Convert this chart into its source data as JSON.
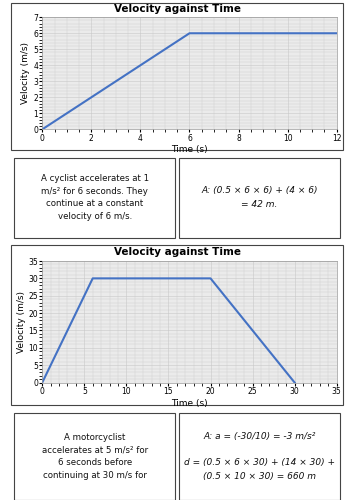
{
  "chart1": {
    "title": "Velocity against Time",
    "xlabel": "Time (s)",
    "ylabel": "Velocity (m/s)",
    "x": [
      0,
      6,
      10,
      12
    ],
    "y": [
      0,
      6,
      6,
      6
    ],
    "xlim": [
      0,
      12
    ],
    "ylim": [
      0,
      7
    ],
    "xticks": [
      0,
      2,
      4,
      6,
      8,
      10,
      12
    ],
    "yticks": [
      0,
      1,
      2,
      3,
      4,
      5,
      6,
      7
    ],
    "line_color": "#4472C4",
    "line_width": 1.5
  },
  "chart2": {
    "title": "Velocity against Time",
    "xlabel": "Time (s)",
    "ylabel": "Velocity (m/s)",
    "x": [
      0,
      6,
      20,
      30
    ],
    "y": [
      0,
      30,
      30,
      0
    ],
    "xlim": [
      0,
      35
    ],
    "ylim": [
      0,
      35
    ],
    "xticks": [
      0,
      5,
      10,
      15,
      20,
      25,
      30,
      35
    ],
    "yticks": [
      0,
      5,
      10,
      15,
      20,
      25,
      30,
      35
    ],
    "line_color": "#4472C4",
    "line_width": 1.5
  },
  "box1_left": "A cyclist accelerates at 1\nm/s² for 6 seconds. They\ncontinue at a constant\nvelocity of 6 m/s.",
  "box1_right": "A: (0.5 × 6 × 6) + (4 × 6)\n= 42 m.",
  "box2_left": "A motorcyclist\naccelerates at 5 m/s² for\n6 seconds before\ncontinuing at 30 m/s for",
  "box2_right": "A: a = (-30/10) = -3 m/s²\n\nd = (0.5 × 6 × 30) + (14 × 30) +\n(0.5 × 10 × 30) = 660 m",
  "bg_color": "#ffffff",
  "grid_color": "#c8c8c8",
  "panel_border": "#444444",
  "text_color": "#111111",
  "chart_bg": "#ebebeb",
  "title_fontsize": 7.5,
  "label_fontsize": 6.5,
  "tick_fontsize": 5.5,
  "text_fontsize": 6.2,
  "answer_fontsize": 6.5
}
